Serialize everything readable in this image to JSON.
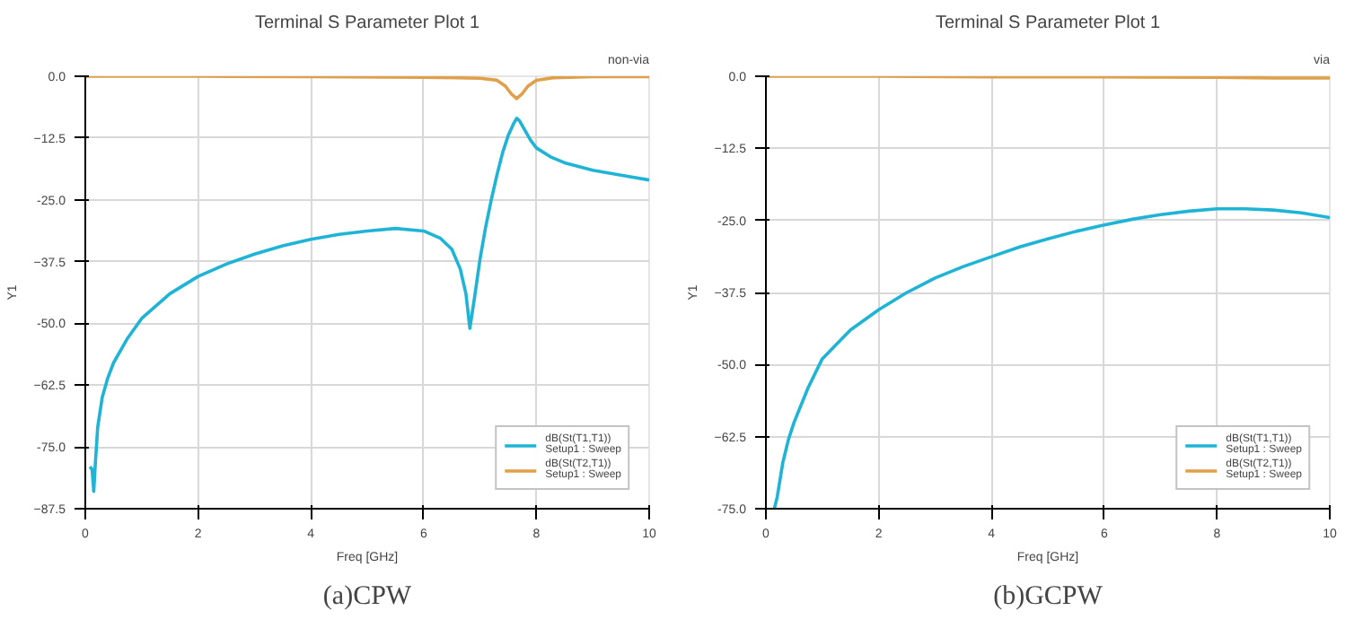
{
  "chart_data": [
    {
      "type": "line",
      "title": "Terminal S Parameter Plot 1",
      "xlabel": "Freq [GHz]",
      "ylabel": "Y1",
      "annotations": [
        "non-via",
        "(a)CPW"
      ],
      "xlim": [
        0,
        10
      ],
      "xticks": [
        0,
        2,
        4,
        6,
        8,
        10
      ],
      "ylim": [
        -87.5,
        0
      ],
      "yticks": [
        {
          "value": 0,
          "label": "0.0"
        },
        -12.5,
        {
          "value": -25,
          "label": "-25.0"
        },
        -37.5,
        {
          "value": -50,
          "label": "-50.0"
        },
        -62.5,
        {
          "value": -75,
          "label": "-75.0"
        },
        -87.5
      ],
      "grid": true,
      "legend": "bottom right",
      "line_style": "solid",
      "marker": "none",
      "series": [
        {
          "name": "dB(St(T1,T1))\nSetup1 : Sweep",
          "color": "#1fb3d6",
          "x": [
            0.08,
            0.12,
            0.15,
            0.18,
            0.22,
            0.3,
            0.4,
            0.5,
            0.75,
            1,
            1.5,
            2,
            2.5,
            3,
            3.5,
            4,
            4.5,
            5,
            5.5,
            6,
            6.3,
            6.5,
            6.65,
            6.75,
            6.82,
            6.9,
            7.0,
            7.1,
            7.2,
            7.3,
            7.4,
            7.5,
            7.6,
            7.65,
            7.7,
            7.8,
            7.9,
            8,
            8.25,
            8.5,
            9,
            9.5,
            10
          ],
          "values": [
            -79,
            -79.5,
            -84,
            -78,
            -71,
            -65,
            -61,
            -58,
            -53,
            -49,
            -44,
            -40.5,
            -38,
            -36,
            -34.3,
            -33,
            -32,
            -31.3,
            -30.8,
            -31.3,
            -32.8,
            -35,
            -39,
            -44,
            -51,
            -45,
            -37,
            -30.5,
            -25,
            -20,
            -15.5,
            -12,
            -9.5,
            -8.5,
            -9,
            -11,
            -13,
            -14.5,
            -16.3,
            -17.5,
            -19,
            -20,
            -21
          ]
        },
        {
          "name": "dB(St(T2,T1))\nSetup1 : Sweep",
          "color": "#e0a04a",
          "x": [
            0,
            2,
            4,
            6,
            7,
            7.3,
            7.45,
            7.55,
            7.65,
            7.75,
            7.85,
            8,
            8.3,
            9,
            10
          ],
          "values": [
            0,
            0,
            -0.1,
            -0.2,
            -0.4,
            -0.8,
            -2,
            -3.5,
            -4.5,
            -3.5,
            -2,
            -0.8,
            -0.3,
            -0.1,
            -0.1
          ]
        }
      ]
    },
    {
      "type": "line",
      "title": "Terminal S Parameter Plot 1",
      "xlabel": "Freq [GHz]",
      "ylabel": "Y1",
      "annotations": [
        "via",
        "(b)GCPW"
      ],
      "xlim": [
        0,
        10
      ],
      "xticks": [
        0,
        2,
        4,
        6,
        8,
        10
      ],
      "ylim": [
        -75,
        0
      ],
      "yticks": [
        {
          "value": 0,
          "label": "0.0"
        },
        -12.5,
        {
          "value": -25,
          "label": "-25.0"
        },
        -37.5,
        {
          "value": -50,
          "label": "-50.0"
        },
        -62.5,
        {
          "value": -75,
          "label": "-75.0"
        }
      ],
      "grid": true,
      "legend": "bottom right",
      "line_style": "solid",
      "marker": "none",
      "series": [
        {
          "name": "dB(St(T1,T1))\nSetup1 : Sweep",
          "color": "#1fb3d6",
          "x": [
            0.15,
            0.2,
            0.3,
            0.4,
            0.5,
            0.75,
            1,
            1.5,
            2,
            2.5,
            3,
            3.5,
            4,
            4.5,
            5,
            5.5,
            6,
            6.5,
            7,
            7.5,
            8,
            8.5,
            9,
            9.5,
            10
          ],
          "values": [
            -75,
            -73,
            -67,
            -63,
            -60,
            -54,
            -49,
            -44,
            -40.5,
            -37.5,
            -35,
            -33,
            -31.3,
            -29.6,
            -28.2,
            -26.9,
            -25.8,
            -24.8,
            -24,
            -23.4,
            -23,
            -23,
            -23.2,
            -23.7,
            -24.5
          ]
        },
        {
          "name": "dB(St(T2,T1))\nSetup1 : Sweep",
          "color": "#e0a04a",
          "x": [
            0,
            2,
            4,
            6,
            8,
            9,
            10
          ],
          "values": [
            0,
            0,
            -0.1,
            -0.1,
            -0.2,
            -0.3,
            -0.3
          ]
        }
      ]
    }
  ]
}
